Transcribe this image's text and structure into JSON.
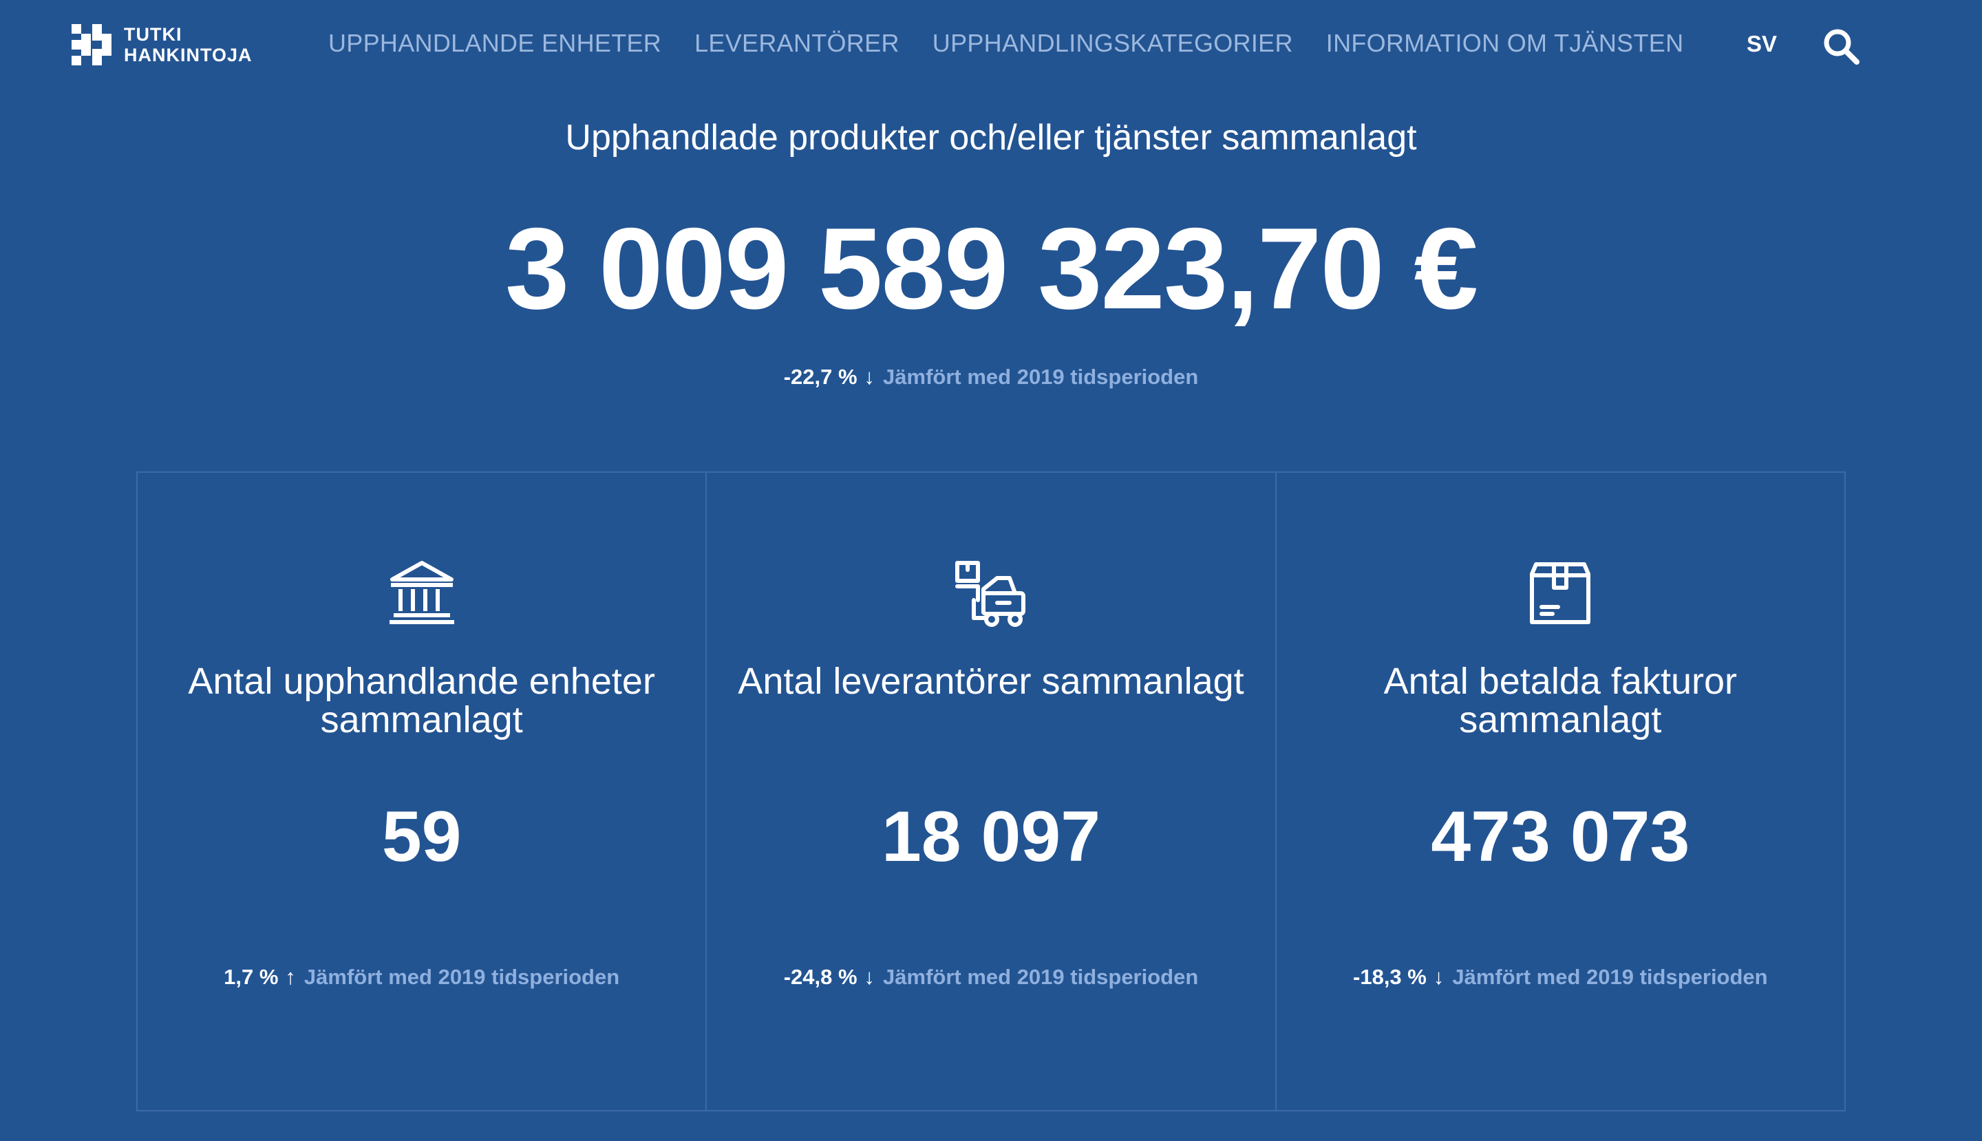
{
  "app": {
    "logo_line1": "TUTKI",
    "logo_line2": "HANKINTOJA"
  },
  "nav": {
    "items": [
      {
        "label": "UPPHANDLANDE ENHETER"
      },
      {
        "label": "LEVERANTÖRER"
      },
      {
        "label": "UPPHANDLINGSKATEGORIER"
      },
      {
        "label": "INFORMATION OM TJÄNSTEN"
      }
    ],
    "language": "SV",
    "search_icon": "search-icon"
  },
  "hero": {
    "title": "Upphandlade produkter och/eller tjänster sammanlagt",
    "value": "3 009 589 323,70 €",
    "change_pct": "-22,7 %",
    "change_arrow": "↓",
    "change_direction": "down",
    "change_text": "Jämfört med 2019 tidsperioden"
  },
  "cards": [
    {
      "icon": "bank-building-icon",
      "title": "Antal upphandlande enheter sammanlagt",
      "value": "59",
      "change_pct": "1,7 %",
      "change_arrow": "↑",
      "change_direction": "up",
      "change_text": "Jämfört med 2019 tidsperioden"
    },
    {
      "icon": "forklift-icon",
      "title": "Antal leverantörer sammanlagt",
      "value": "18 097",
      "change_pct": "-24,8 %",
      "change_arrow": "↓",
      "change_direction": "down",
      "change_text": "Jämfört med 2019 tidsperioden"
    },
    {
      "icon": "package-box-icon",
      "title": "Antal betalda fakturor sammanlagt",
      "value": "473 073",
      "change_pct": "-18,3 %",
      "change_arrow": "↓",
      "change_direction": "down",
      "change_text": "Jämfört med 2019 tidsperioden"
    }
  ],
  "colors": {
    "background": "#235492",
    "nav_text": "#9cb8de",
    "muted_text": "#8fb0de",
    "border": "#3c6aa6",
    "text": "#ffffff"
  }
}
